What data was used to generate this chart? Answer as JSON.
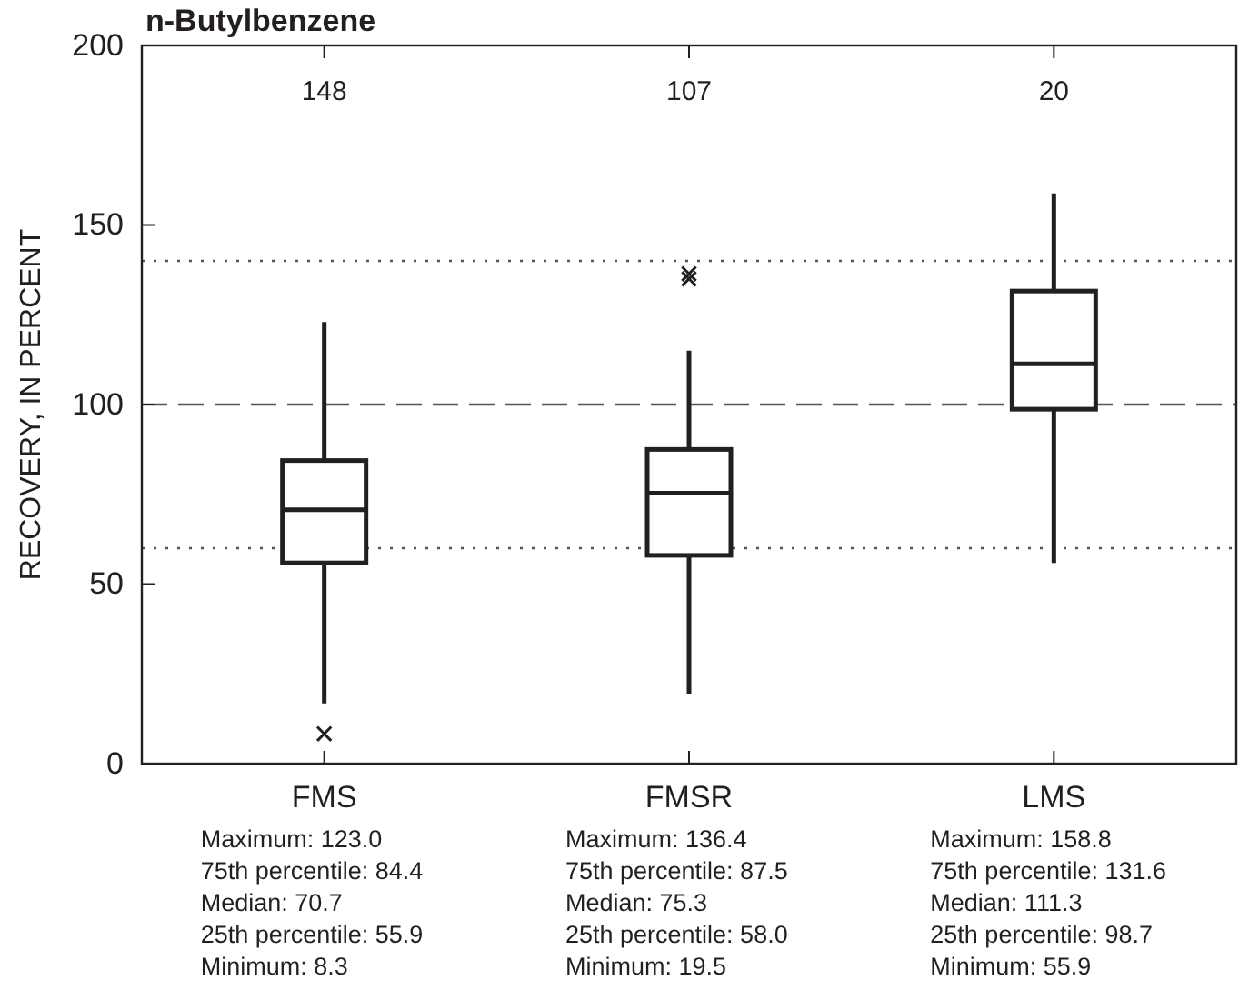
{
  "chart_data": {
    "type": "box",
    "title": "n-Butylbenzene",
    "ylabel": "RECOVERY, IN PERCENT",
    "categories": [
      "FMS",
      "FMSR",
      "LMS"
    ],
    "boxes": [
      {
        "low": 16.8,
        "q1": 55.9,
        "median": 70.7,
        "q3": 84.4,
        "high": 123.0,
        "outliers": [
          8.3
        ]
      },
      {
        "low": 19.5,
        "q1": 58.0,
        "median": 75.3,
        "q3": 87.5,
        "high": 115,
        "outliers": [
          135,
          136.4
        ]
      },
      {
        "low": 55.9,
        "q1": 98.7,
        "median": 111.3,
        "q3": 131.6,
        "high": 158.8
      }
    ],
    "ylim": [
      0,
      200
    ],
    "yticks": [
      0,
      50,
      100,
      150,
      200
    ],
    "marker": "cross",
    "grid": false,
    "ref_lines": [
      {
        "axis": "y",
        "value": 100,
        "line_style": "dashed"
      },
      {
        "axis": "y",
        "value": 60,
        "line_style": "dotted"
      },
      {
        "axis": "y",
        "value": 140,
        "line_style": "dotted"
      }
    ],
    "annotations": [
      "148",
      "107",
      "20",
      "Maximum: 123.0\n75th percentile: 84.4\nMedian: 70.7\n25th percentile: 55.9\nMinimum: 8.3",
      "Maximum: 136.4\n75th percentile: 87.5\nMedian: 75.3\n25th percentile: 58.0\nMinimum: 19.5",
      "Maximum: 158.8\n75th percentile: 131.6\nMedian: 111.3\n25th percentile: 98.7\nMinimum: 55.9"
    ]
  }
}
